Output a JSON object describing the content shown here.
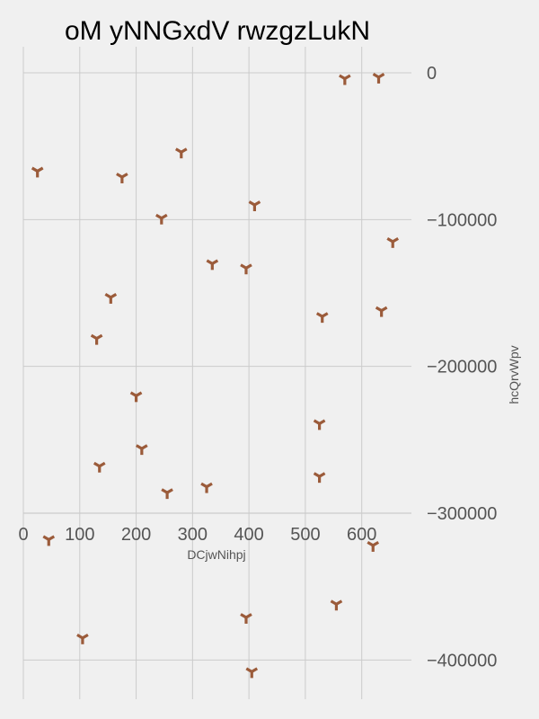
{
  "chart_data": {
    "type": "scatter",
    "title": "oM yNNGxdV rwzgzLukN",
    "xlabel": "DCjwNihpj",
    "ylabel": "hcQrvWpv",
    "xlim": [
      -2,
      680
    ],
    "ylim": [
      -428000,
      19000
    ],
    "x_ticks": [
      0,
      100,
      200,
      300,
      400,
      500,
      600
    ],
    "x_tick_labels": [
      "0",
      "100",
      "200",
      "300",
      "400",
      "500",
      "600"
    ],
    "y_ticks": [
      0,
      -100000,
      -200000,
      -300000,
      -400000
    ],
    "y_tick_labels": [
      "0",
      "−100000",
      "−200000",
      "−300000",
      "−400000"
    ],
    "marker": "tri-down",
    "marker_color": "#9b5b3a",
    "grid": true,
    "x_axis_position": "y=-300000",
    "y_axis_position": "right",
    "points": [
      {
        "x": 570,
        "y": -4000
      },
      {
        "x": 630,
        "y": -3000
      },
      {
        "x": 280,
        "y": -54000
      },
      {
        "x": 25,
        "y": -67000
      },
      {
        "x": 175,
        "y": -71000
      },
      {
        "x": 410,
        "y": -90000
      },
      {
        "x": 245,
        "y": -99000
      },
      {
        "x": 655,
        "y": -115000
      },
      {
        "x": 335,
        "y": -130000
      },
      {
        "x": 395,
        "y": -133000
      },
      {
        "x": 155,
        "y": -153000
      },
      {
        "x": 530,
        "y": -166000
      },
      {
        "x": 635,
        "y": -162000
      },
      {
        "x": 130,
        "y": -181000
      },
      {
        "x": 200,
        "y": -220000
      },
      {
        "x": 525,
        "y": -239000
      },
      {
        "x": 210,
        "y": -256000
      },
      {
        "x": 135,
        "y": -268000
      },
      {
        "x": 525,
        "y": -275000
      },
      {
        "x": 255,
        "y": -286000
      },
      {
        "x": 325,
        "y": -282000
      },
      {
        "x": 45,
        "y": -318000
      },
      {
        "x": 620,
        "y": -322000
      },
      {
        "x": 555,
        "y": -362000
      },
      {
        "x": 395,
        "y": -371000
      },
      {
        "x": 105,
        "y": -385000
      },
      {
        "x": 405,
        "y": -408000
      }
    ]
  }
}
